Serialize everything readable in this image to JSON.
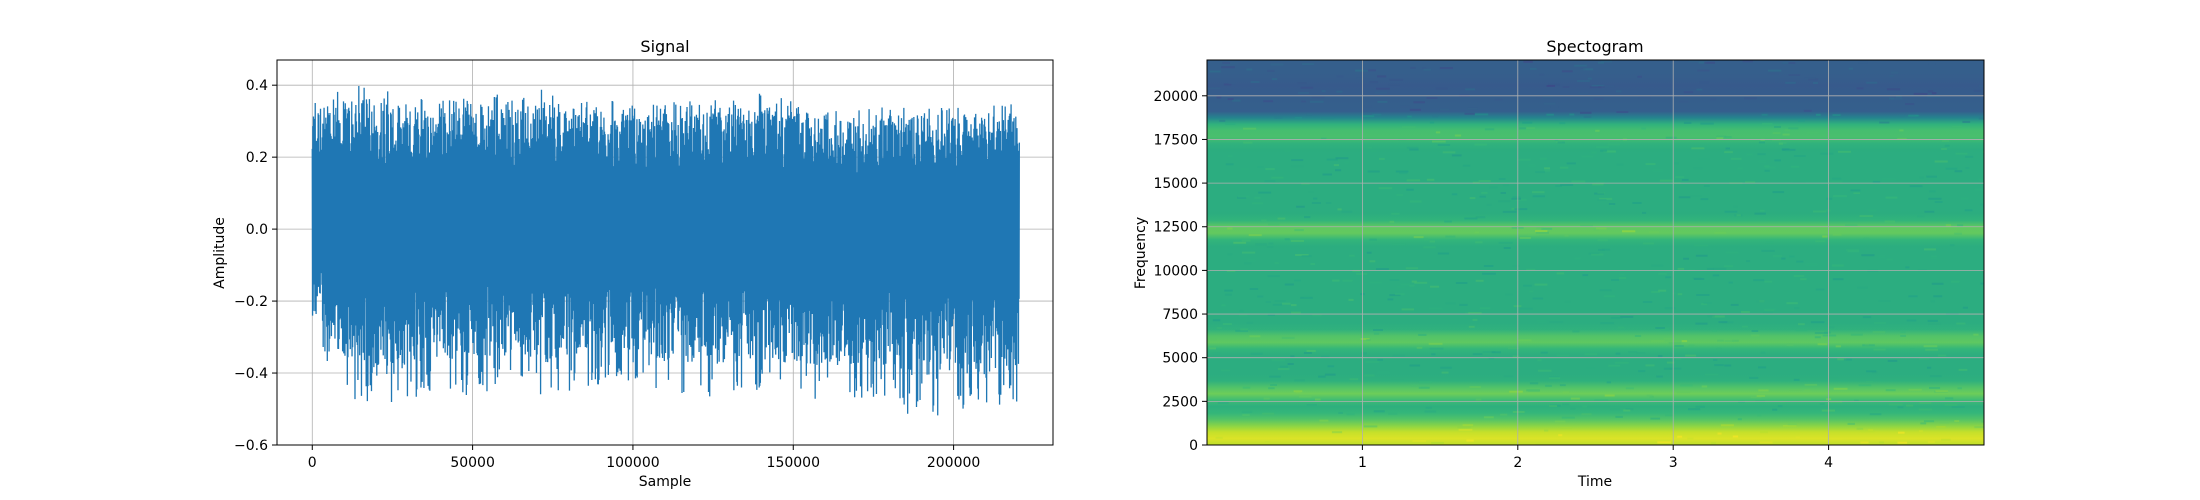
{
  "chart_data": [
    {
      "type": "line",
      "title": "Signal",
      "xlabel": "Sample",
      "ylabel": "Amplitude",
      "xlim": [
        -11000,
        231000
      ],
      "ylim": [
        -0.6,
        0.47
      ],
      "xticks": [
        0,
        50000,
        100000,
        150000,
        200000
      ],
      "yticks": [
        -0.6,
        -0.4,
        -0.2,
        0.0,
        0.2,
        0.4
      ],
      "xtick_labels": [
        "0",
        "50000",
        "100000",
        "150000",
        "200000"
      ],
      "ytick_labels": [
        "−0.6",
        "−0.4",
        "−0.2",
        "0.0",
        "0.2",
        "0.4"
      ],
      "grid": true,
      "color": "#1f77b4",
      "sample_count": 220500,
      "approx_range": [
        -0.55,
        0.43
      ],
      "series": [
        {
          "x": [
            0,
            10000,
            20000,
            30000,
            40000,
            50000,
            60000,
            70000,
            80000,
            90000,
            100000,
            110000,
            120000,
            130000,
            140000,
            150000,
            160000,
            170000,
            180000,
            190000,
            200000,
            210000,
            220000
          ],
          "y_max": [
            0.38,
            0.39,
            0.41,
            0.37,
            0.36,
            0.4,
            0.37,
            0.41,
            0.36,
            0.37,
            0.35,
            0.36,
            0.36,
            0.37,
            0.38,
            0.36,
            0.34,
            0.33,
            0.36,
            0.35,
            0.36,
            0.35,
            0.35
          ],
          "y_min": [
            -0.3,
            -0.45,
            -0.52,
            -0.49,
            -0.45,
            -0.47,
            -0.44,
            -0.47,
            -0.45,
            -0.44,
            -0.42,
            -0.46,
            -0.47,
            -0.47,
            -0.45,
            -0.48,
            -0.47,
            -0.48,
            -0.47,
            -0.55,
            -0.5,
            -0.52,
            -0.48
          ]
        }
      ]
    },
    {
      "type": "heatmap",
      "title": "Spectogram",
      "xlabel": "Time",
      "ylabel": "Frequency",
      "xlim": [
        0,
        5.0
      ],
      "ylim": [
        0,
        22050
      ],
      "xticks": [
        1,
        2,
        3,
        4
      ],
      "yticks": [
        0,
        2500,
        5000,
        7500,
        10000,
        12500,
        15000,
        17500,
        20000
      ],
      "xtick_labels": [
        "1",
        "2",
        "3",
        "4"
      ],
      "ytick_labels": [
        "0",
        "2500",
        "5000",
        "7500",
        "10000",
        "12500",
        "15000",
        "17500",
        "20000"
      ],
      "grid": true,
      "colormap": "viridis",
      "bands": [
        {
          "freq": 400,
          "level": 0.95
        },
        {
          "freq": 3000,
          "level": 0.78
        },
        {
          "freq": 6000,
          "level": 0.76
        },
        {
          "freq": 12300,
          "level": 0.78
        },
        {
          "freq": 16500,
          "level": 0.4
        },
        {
          "freq": 17800,
          "level": 0.72
        },
        {
          "freq": 20500,
          "level": 0.28
        }
      ]
    }
  ]
}
